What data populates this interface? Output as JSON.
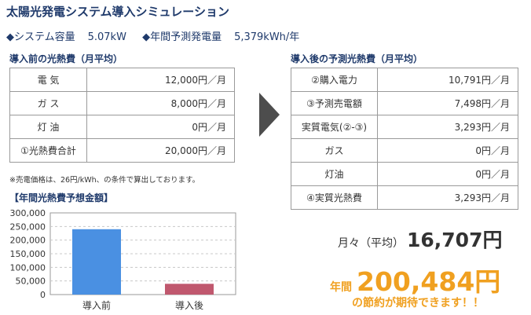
{
  "title": "太陽光発電システム導入シミュレーション",
  "specs": {
    "capacity_label": "◆システム容量",
    "capacity_value": "5.07kW",
    "generation_label": "◆年間予測発電量",
    "generation_value": "5,379kWh/年"
  },
  "before": {
    "heading": "導入前の光熱費（月平均）",
    "rows": [
      {
        "label": "電 気",
        "value": "12,000円／月"
      },
      {
        "label": "ガ ス",
        "value": "8,000円／月"
      },
      {
        "label": "灯 油",
        "value": "0円／月"
      },
      {
        "label": "①光熱費合計",
        "value": "20,000円／月"
      }
    ]
  },
  "after": {
    "heading": "導入後の予測光熱費（月平均）",
    "rows": [
      {
        "label": "②購入電力",
        "value": "10,791円／月"
      },
      {
        "label": "③予測売電額",
        "value": "7,498円／月"
      },
      {
        "label": "実質電気(②-③)",
        "value": "3,293円／月"
      },
      {
        "label": "ガス",
        "value": "0円／月"
      },
      {
        "label": "灯油",
        "value": "0円／月"
      },
      {
        "label": "④実質光熱費",
        "value": "3,293円／月"
      }
    ]
  },
  "note": "※売電価格は、26円/kWh、の条件で算出しております。",
  "chart_heading": "【年間光熱費予想金額】",
  "chart_data": {
    "type": "bar",
    "categories": [
      "導入前",
      "導入後"
    ],
    "values": [
      240000,
      39516
    ],
    "ylim": [
      0,
      300000
    ],
    "yticks": [
      "0",
      "50,000",
      "100,000",
      "150,000",
      "200,000",
      "250,000",
      "300,000"
    ],
    "colors": [
      "#4a90e2",
      "#c0586e"
    ],
    "grid": true
  },
  "summary": {
    "monthly_label": "月々（平均）",
    "monthly_value": "16,707円",
    "annual_label": "年間",
    "annual_value": "200,484円",
    "saving_text": "の節約が期待できます！！"
  }
}
